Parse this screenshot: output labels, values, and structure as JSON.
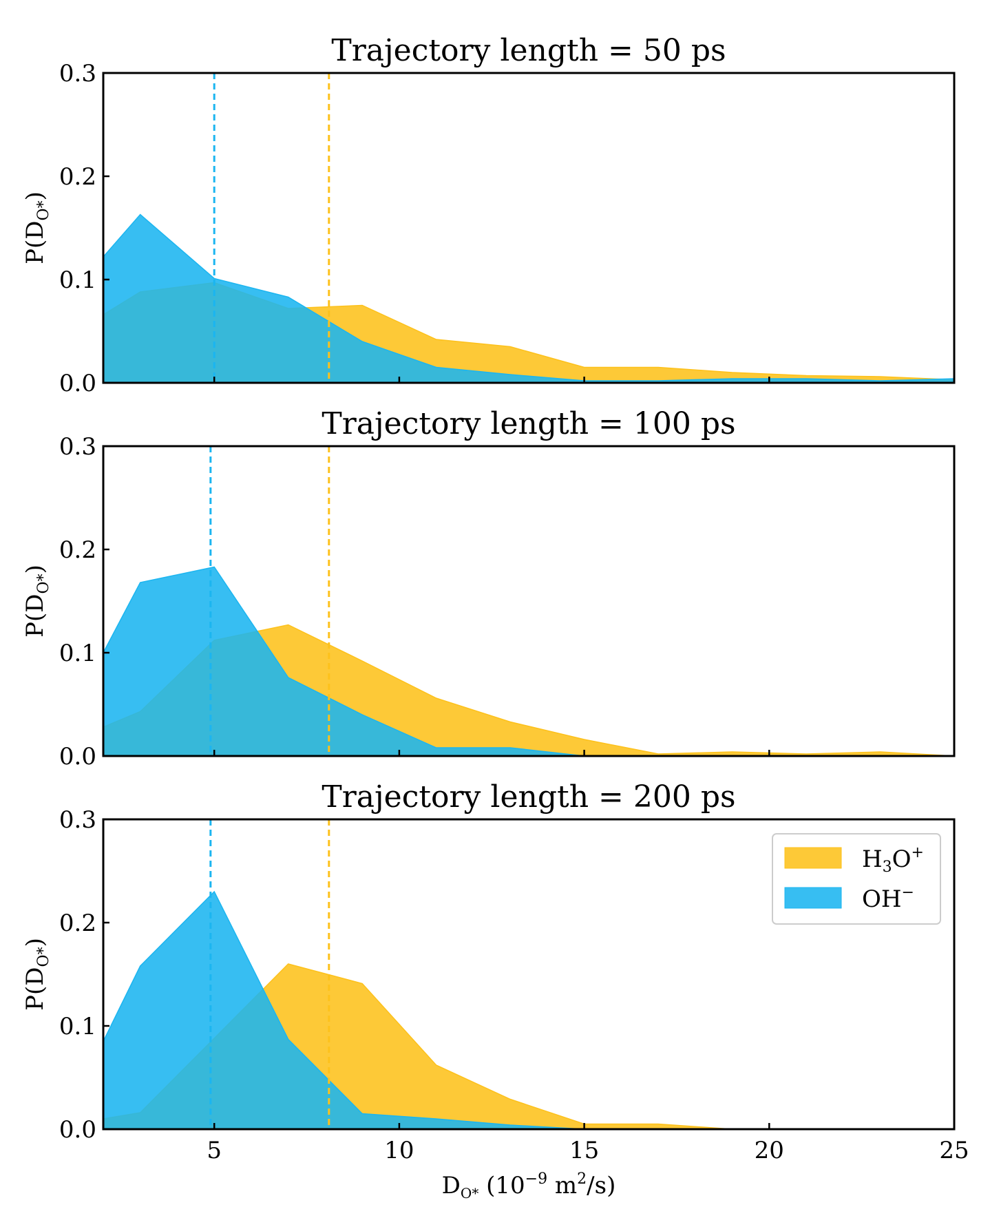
{
  "chart_data": [
    {
      "type": "area",
      "title": "Trajectory length = 50 ps",
      "xlabel": "",
      "ylabel": "P(D",
      "ylabel_sub": "O*",
      "ylabel_close": ")",
      "xlim": [
        2,
        25
      ],
      "ylim": [
        0,
        0.3
      ],
      "xticks": [
        5,
        10,
        15,
        20,
        25
      ],
      "yticks": [
        0.0,
        0.1,
        0.2,
        0.3
      ],
      "ytick_labels": [
        "0.0",
        "0.1",
        "0.2",
        "0.3"
      ],
      "xtick_labels": [],
      "legend": null,
      "series": [
        {
          "name": "H₃O⁺",
          "color": "#FDC11B",
          "x": [
            2,
            3,
            5,
            7,
            9,
            11,
            13,
            15,
            17,
            19,
            21,
            23,
            25
          ],
          "y": [
            0.066,
            0.088,
            0.097,
            0.072,
            0.075,
            0.042,
            0.035,
            0.015,
            0.015,
            0.01,
            0.007,
            0.006,
            0.003
          ],
          "mean": 8.1
        },
        {
          "name": "OH⁻",
          "color": "#1BB5F0",
          "x": [
            2,
            3,
            5,
            7,
            9,
            11,
            13,
            15,
            17,
            19,
            21,
            23,
            25
          ],
          "y": [
            0.122,
            0.163,
            0.101,
            0.083,
            0.04,
            0.015,
            0.008,
            0.002,
            0.002,
            0.004,
            0.004,
            0.002,
            0.004
          ],
          "mean": 5.0
        }
      ]
    },
    {
      "type": "area",
      "title": "Trajectory length = 100 ps",
      "xlabel": "",
      "ylabel": "P(D",
      "ylabel_sub": "O*",
      "ylabel_close": ")",
      "xlim": [
        2,
        25
      ],
      "ylim": [
        0,
        0.3
      ],
      "xticks": [
        5,
        10,
        15,
        20,
        25
      ],
      "yticks": [
        0.0,
        0.1,
        0.2,
        0.3
      ],
      "ytick_labels": [
        "0.0",
        "0.1",
        "0.2",
        "0.3"
      ],
      "xtick_labels": [],
      "legend": null,
      "series": [
        {
          "name": "H₃O⁺",
          "color": "#FDC11B",
          "x": [
            2,
            3,
            5,
            7,
            9,
            11,
            13,
            15,
            17,
            19,
            21,
            23,
            25
          ],
          "y": [
            0.028,
            0.043,
            0.112,
            0.127,
            0.092,
            0.056,
            0.033,
            0.016,
            0.002,
            0.004,
            0.002,
            0.004,
            0.0
          ],
          "mean": 8.1
        },
        {
          "name": "OH⁻",
          "color": "#1BB5F0",
          "x": [
            2,
            3,
            5,
            7,
            9,
            11,
            13,
            15,
            17,
            19,
            21,
            23,
            25
          ],
          "y": [
            0.1,
            0.168,
            0.183,
            0.076,
            0.04,
            0.008,
            0.008,
            0.0,
            0.0,
            0.0,
            0.0,
            0.0,
            0.0
          ],
          "mean": 4.9
        }
      ]
    },
    {
      "type": "area",
      "title": "Trajectory length = 200 ps",
      "xlabel": "D",
      "xlabel_sub": "O*",
      "xlabel_rest": " (10",
      "xlabel_sup": "−9",
      "xlabel_rest2": " m",
      "xlabel_sup2": "2",
      "xlabel_rest3": "/s)",
      "ylabel": "P(D",
      "ylabel_sub": "O*",
      "ylabel_close": ")",
      "xlim": [
        2,
        25
      ],
      "ylim": [
        0,
        0.3
      ],
      "xticks": [
        5,
        10,
        15,
        20,
        25
      ],
      "yticks": [
        0.0,
        0.1,
        0.2,
        0.3
      ],
      "ytick_labels": [
        "0.0",
        "0.1",
        "0.2",
        "0.3"
      ],
      "xtick_labels": [
        "5",
        "10",
        "15",
        "20",
        "25"
      ],
      "legend": "top-right",
      "series": [
        {
          "name": "H₃O⁺",
          "color": "#FDC11B",
          "x": [
            2,
            3,
            5,
            7,
            9,
            11,
            13,
            15,
            17,
            19,
            21,
            23,
            25
          ],
          "y": [
            0.01,
            0.016,
            0.088,
            0.16,
            0.141,
            0.062,
            0.029,
            0.005,
            0.005,
            0.0,
            0.0,
            0.0,
            0.0
          ],
          "mean": 8.1
        },
        {
          "name": "OH⁻",
          "color": "#1BB5F0",
          "x": [
            2,
            3,
            5,
            7,
            9,
            11,
            13,
            15,
            17,
            19,
            21,
            23,
            25
          ],
          "y": [
            0.085,
            0.158,
            0.23,
            0.087,
            0.015,
            0.01,
            0.004,
            0.0,
            0.0,
            0.0,
            0.0,
            0.0,
            0.0
          ],
          "mean": 4.9
        }
      ]
    }
  ],
  "legend_labels": {
    "h3o_main": "H",
    "h3o_sub": "3",
    "h3o_mid": "O",
    "h3o_sup": "+",
    "oh_main": "OH",
    "oh_sup": "−"
  }
}
